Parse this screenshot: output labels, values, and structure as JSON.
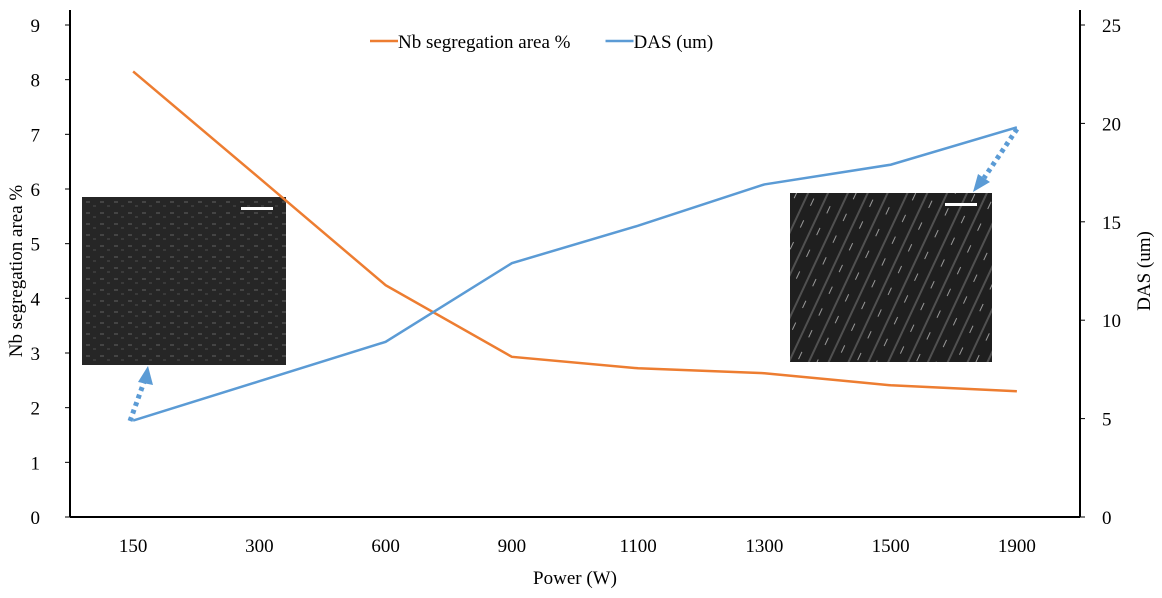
{
  "chart_data": {
    "type": "line",
    "categories": [
      "150",
      "300",
      "600",
      "900",
      "1100",
      "1300",
      "1500",
      "1900"
    ],
    "series": [
      {
        "name": "Nb segregation area %",
        "color": "#ed7d31",
        "values": [
          8.15,
          6.2,
          4.24,
          2.93,
          2.72,
          2.63,
          2.41,
          2.3
        ]
      },
      {
        "name": "DAS (um)",
        "color": "#5b9bd5",
        "axis": "y2",
        "values": [
          4.9,
          6.9,
          8.9,
          12.9,
          14.8,
          16.9,
          17.9,
          19.8
        ]
      }
    ],
    "xlabel": "Power (W)",
    "ylabel": "Nb segregation area %",
    "y2label": "DAS (um)",
    "ylim": [
      0,
      9
    ],
    "yticks": [
      0,
      1,
      2,
      3,
      4,
      5,
      6,
      7,
      8,
      9
    ],
    "y2lim": [
      0,
      25
    ],
    "y2ticks": [
      0,
      5,
      10,
      15,
      20,
      25
    ],
    "grid": false,
    "legend": "top"
  }
}
